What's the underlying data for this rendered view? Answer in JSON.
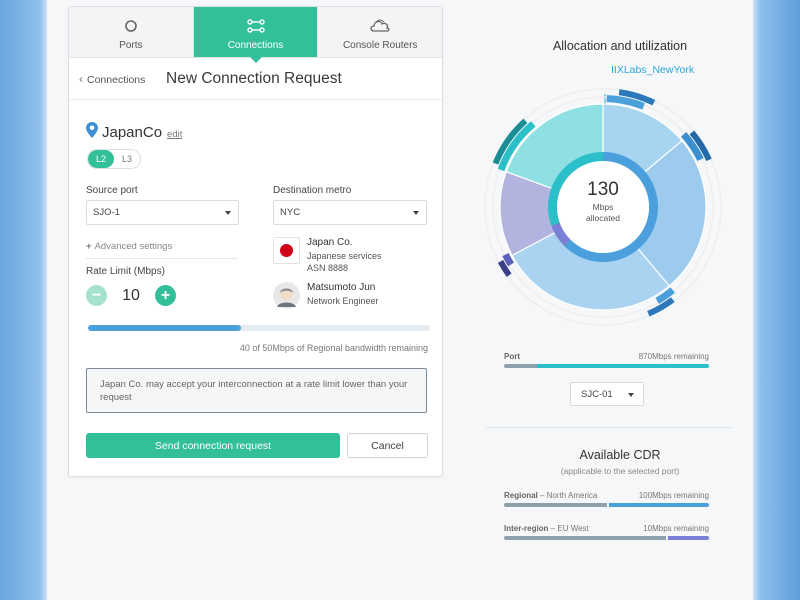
{
  "tabs": [
    {
      "label": "Ports",
      "icon": "circle-icon"
    },
    {
      "label": "Connections",
      "icon": "connections-icon"
    },
    {
      "label": "Console Routers",
      "icon": "cloud-router-icon"
    }
  ],
  "header": {
    "back_label": "Connections",
    "title": "New Connection Request"
  },
  "company": {
    "name": "JapanCo",
    "edit_label": "edit"
  },
  "layer_toggle": {
    "options": [
      "L2",
      "L3"
    ],
    "selected": "L2"
  },
  "source_port": {
    "label": "Source port",
    "value": "SJO-1"
  },
  "destination_metro": {
    "label": "Destination metro",
    "value": "NYC"
  },
  "advanced_settings": {
    "label": "Advanced settings"
  },
  "rate_limit": {
    "label": "Rate Limit (Mbps)",
    "value": "10"
  },
  "contacts": [
    {
      "name": "Japan Co.",
      "line1": "Japanese services",
      "line2": "ASN 8888"
    },
    {
      "name": "Matsumoto Jun",
      "line1": "Network Engineer"
    }
  ],
  "bandwidth": {
    "used": 40,
    "total": 50,
    "text": "40 of 50Mbps of Regional bandwidth remaining"
  },
  "note": "Japan Co. may accept your interconnection at a rate limit lower than your request",
  "actions": {
    "send_label": "Send connection request",
    "cancel_label": "Cancel"
  },
  "allocation": {
    "title": "Allocation and utilization",
    "center_value": "130",
    "center_unit": "Mbps",
    "center_caption": "allocated",
    "highlight_label": "IIXLabs_NewYork"
  },
  "port_bar": {
    "label": "Port",
    "remaining": "870Mbps remaining",
    "used_fraction": 0.16
  },
  "port_select": {
    "value": "SJC-01"
  },
  "cdr": {
    "title": "Available CDR",
    "subtitle": "(applicable to the selected port)",
    "rows": [
      {
        "name": "Regional",
        "scope": "North America",
        "remaining": "100Mbps remaining",
        "used_fraction": 0.5,
        "fill_color": "#4aa0da"
      },
      {
        "name": "Inter-region",
        "scope": "EU West",
        "remaining": "10Mbps remaining",
        "used_fraction": 0.79,
        "fill_color": "#7b7fd6"
      }
    ]
  },
  "colors": {
    "accent": "#34bf9b",
    "blue": "#4aa0da",
    "teal": "#2bbfc9",
    "purple": "#7b7fd6"
  }
}
